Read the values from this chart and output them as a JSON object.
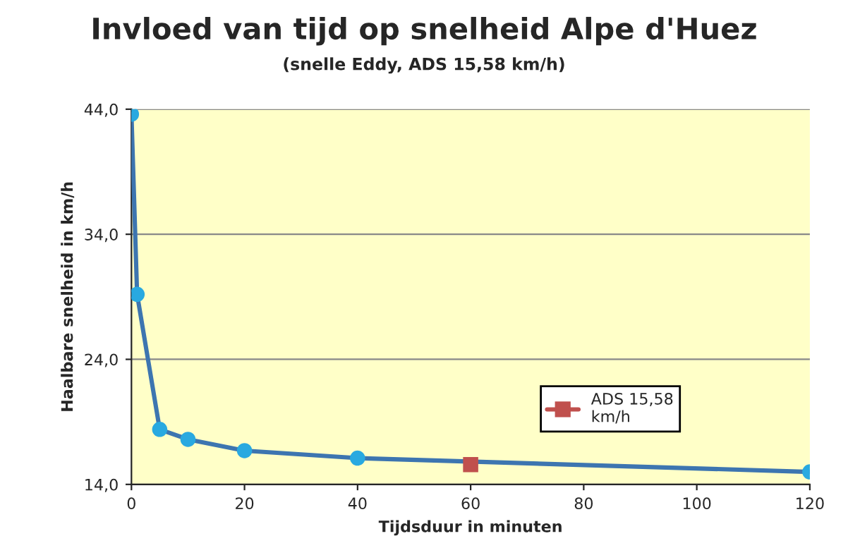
{
  "chart_data": {
    "type": "line",
    "title": "Invloed van tijd op snelheid Alpe d'Huez",
    "subtitle": "(snelle Eddy, ADS 15,58 km/h)",
    "xlabel": "Tijdsduur in minuten",
    "ylabel": "Haalbare snelheid in km/h",
    "series": [
      {
        "color": "#3d75b0",
        "marker": "circle",
        "x": [
          0,
          1,
          5,
          10,
          20,
          40,
          120
        ],
        "values": [
          43.6,
          29.2,
          18.4,
          17.6,
          16.7,
          16.1,
          15.0
        ]
      },
      {
        "name": "ADS 15,58 km/h",
        "color": "#c0504d",
        "marker": "square",
        "x": [
          60
        ],
        "values": [
          15.58
        ]
      }
    ],
    "xlim": [
      0,
      120
    ],
    "xticks": [
      0,
      20,
      40,
      60,
      80,
      100,
      120
    ],
    "ylim": [
      14,
      44
    ],
    "yticks": [
      {
        "value": 14,
        "label": "14,0"
      },
      {
        "value": 24,
        "label": "24,0"
      },
      {
        "value": 34,
        "label": "34,0"
      },
      {
        "value": 44,
        "label": "44,0"
      }
    ],
    "grid": "y",
    "legend": "bottom right"
  }
}
